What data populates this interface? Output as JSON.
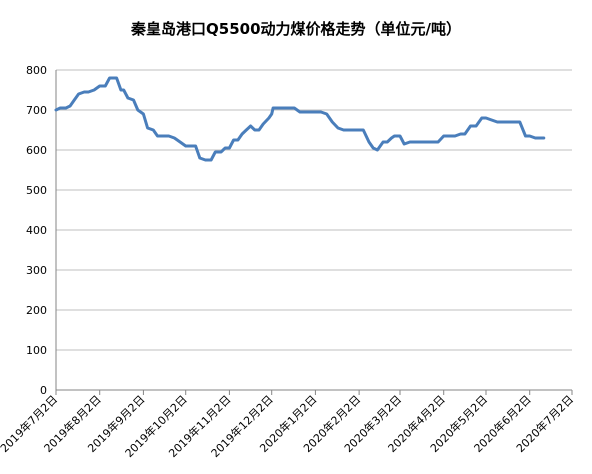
{
  "chart_data": {
    "type": "line",
    "title": "秦皇岛港口Q5500动力煤价格走势（单位元/吨）",
    "xlabel": "",
    "ylabel": "",
    "ylim": [
      0,
      800
    ],
    "yticks": [
      0,
      100,
      200,
      300,
      400,
      500,
      600,
      700,
      800
    ],
    "grid": true,
    "legend": "none",
    "line_color": "#4a7ebb",
    "xlim": [
      "2019-07-02",
      "2020-07-02"
    ],
    "xtick_labels": [
      "2019年7月2日",
      "2019年8月2日",
      "2019年9月2日",
      "2019年10月2日",
      "2019年11月2日",
      "2019年12月2日",
      "2020年1月2日",
      "2020年2月2日",
      "2020年3月2日",
      "2020年4月2日",
      "2020年5月2日",
      "2020年6月2日",
      "2020年7月2日"
    ],
    "xtick_dates": [
      "2019-07-02",
      "2019-08-02",
      "2019-09-02",
      "2019-10-02",
      "2019-11-02",
      "2019-12-02",
      "2020-01-02",
      "2020-02-02",
      "2020-03-02",
      "2020-04-02",
      "2020-05-02",
      "2020-06-02",
      "2020-07-02"
    ],
    "series": [
      {
        "x": [
          "2019-07-02",
          "2019-07-05",
          "2019-07-09",
          "2019-07-12",
          "2019-07-15",
          "2019-07-18",
          "2019-07-22",
          "2019-07-25",
          "2019-07-29",
          "2019-08-02",
          "2019-08-06",
          "2019-08-09",
          "2019-08-14",
          "2019-08-17",
          "2019-08-19",
          "2019-08-22",
          "2019-08-26",
          "2019-08-29",
          "2019-09-02",
          "2019-09-05",
          "2019-09-09",
          "2019-09-12",
          "2019-09-16",
          "2019-09-20",
          "2019-09-24",
          "2019-09-28",
          "2019-10-02",
          "2019-10-05",
          "2019-10-09",
          "2019-10-10",
          "2019-10-12",
          "2019-10-16",
          "2019-10-20",
          "2019-10-23",
          "2019-10-27",
          "2019-10-30",
          "2019-11-02",
          "2019-11-05",
          "2019-11-08",
          "2019-11-11",
          "2019-11-14",
          "2019-11-17",
          "2019-11-20",
          "2019-11-23",
          "2019-11-26",
          "2019-11-30",
          "2019-12-02",
          "2019-12-03",
          "2019-12-06",
          "2019-12-10",
          "2019-12-14",
          "2019-12-18",
          "2019-12-22",
          "2019-12-25",
          "2019-12-29",
          "2020-01-02",
          "2020-01-06",
          "2020-01-10",
          "2020-01-14",
          "2020-01-18",
          "2020-01-22",
          "2020-01-25",
          "2020-01-29",
          "2020-02-02",
          "2020-02-05",
          "2020-02-09",
          "2020-02-12",
          "2020-02-15",
          "2020-02-19",
          "2020-02-22",
          "2020-02-25",
          "2020-02-27",
          "2020-02-29",
          "2020-03-02",
          "2020-03-05",
          "2020-03-09",
          "2020-03-13",
          "2020-03-17",
          "2020-03-21",
          "2020-03-25",
          "2020-03-29",
          "2020-04-02",
          "2020-04-06",
          "2020-04-10",
          "2020-04-14",
          "2020-04-17",
          "2020-04-21",
          "2020-04-25",
          "2020-04-29",
          "2020-05-02",
          "2020-05-06",
          "2020-05-10",
          "2020-05-14",
          "2020-05-18",
          "2020-05-22",
          "2020-05-26",
          "2020-05-30",
          "2020-06-02",
          "2020-06-06",
          "2020-06-09",
          "2020-06-12"
        ],
        "values": [
          700,
          705,
          705,
          710,
          725,
          740,
          745,
          745,
          750,
          760,
          760,
          780,
          780,
          750,
          750,
          730,
          725,
          700,
          690,
          655,
          650,
          635,
          635,
          635,
          630,
          620,
          610,
          610,
          610,
          600,
          580,
          575,
          575,
          595,
          595,
          605,
          605,
          625,
          625,
          640,
          650,
          660,
          650,
          650,
          665,
          680,
          690,
          705,
          705,
          705,
          705,
          705,
          695,
          695,
          695,
          695,
          695,
          690,
          670,
          655,
          650,
          650,
          650,
          650,
          650,
          620,
          605,
          600,
          620,
          620,
          630,
          635,
          635,
          635,
          615,
          620,
          620,
          620,
          620,
          620,
          620,
          635,
          635,
          635,
          640,
          640,
          660,
          660,
          680,
          680,
          675,
          670,
          670,
          670,
          670,
          670,
          635,
          635,
          630,
          630,
          630
        ]
      }
    ]
  }
}
